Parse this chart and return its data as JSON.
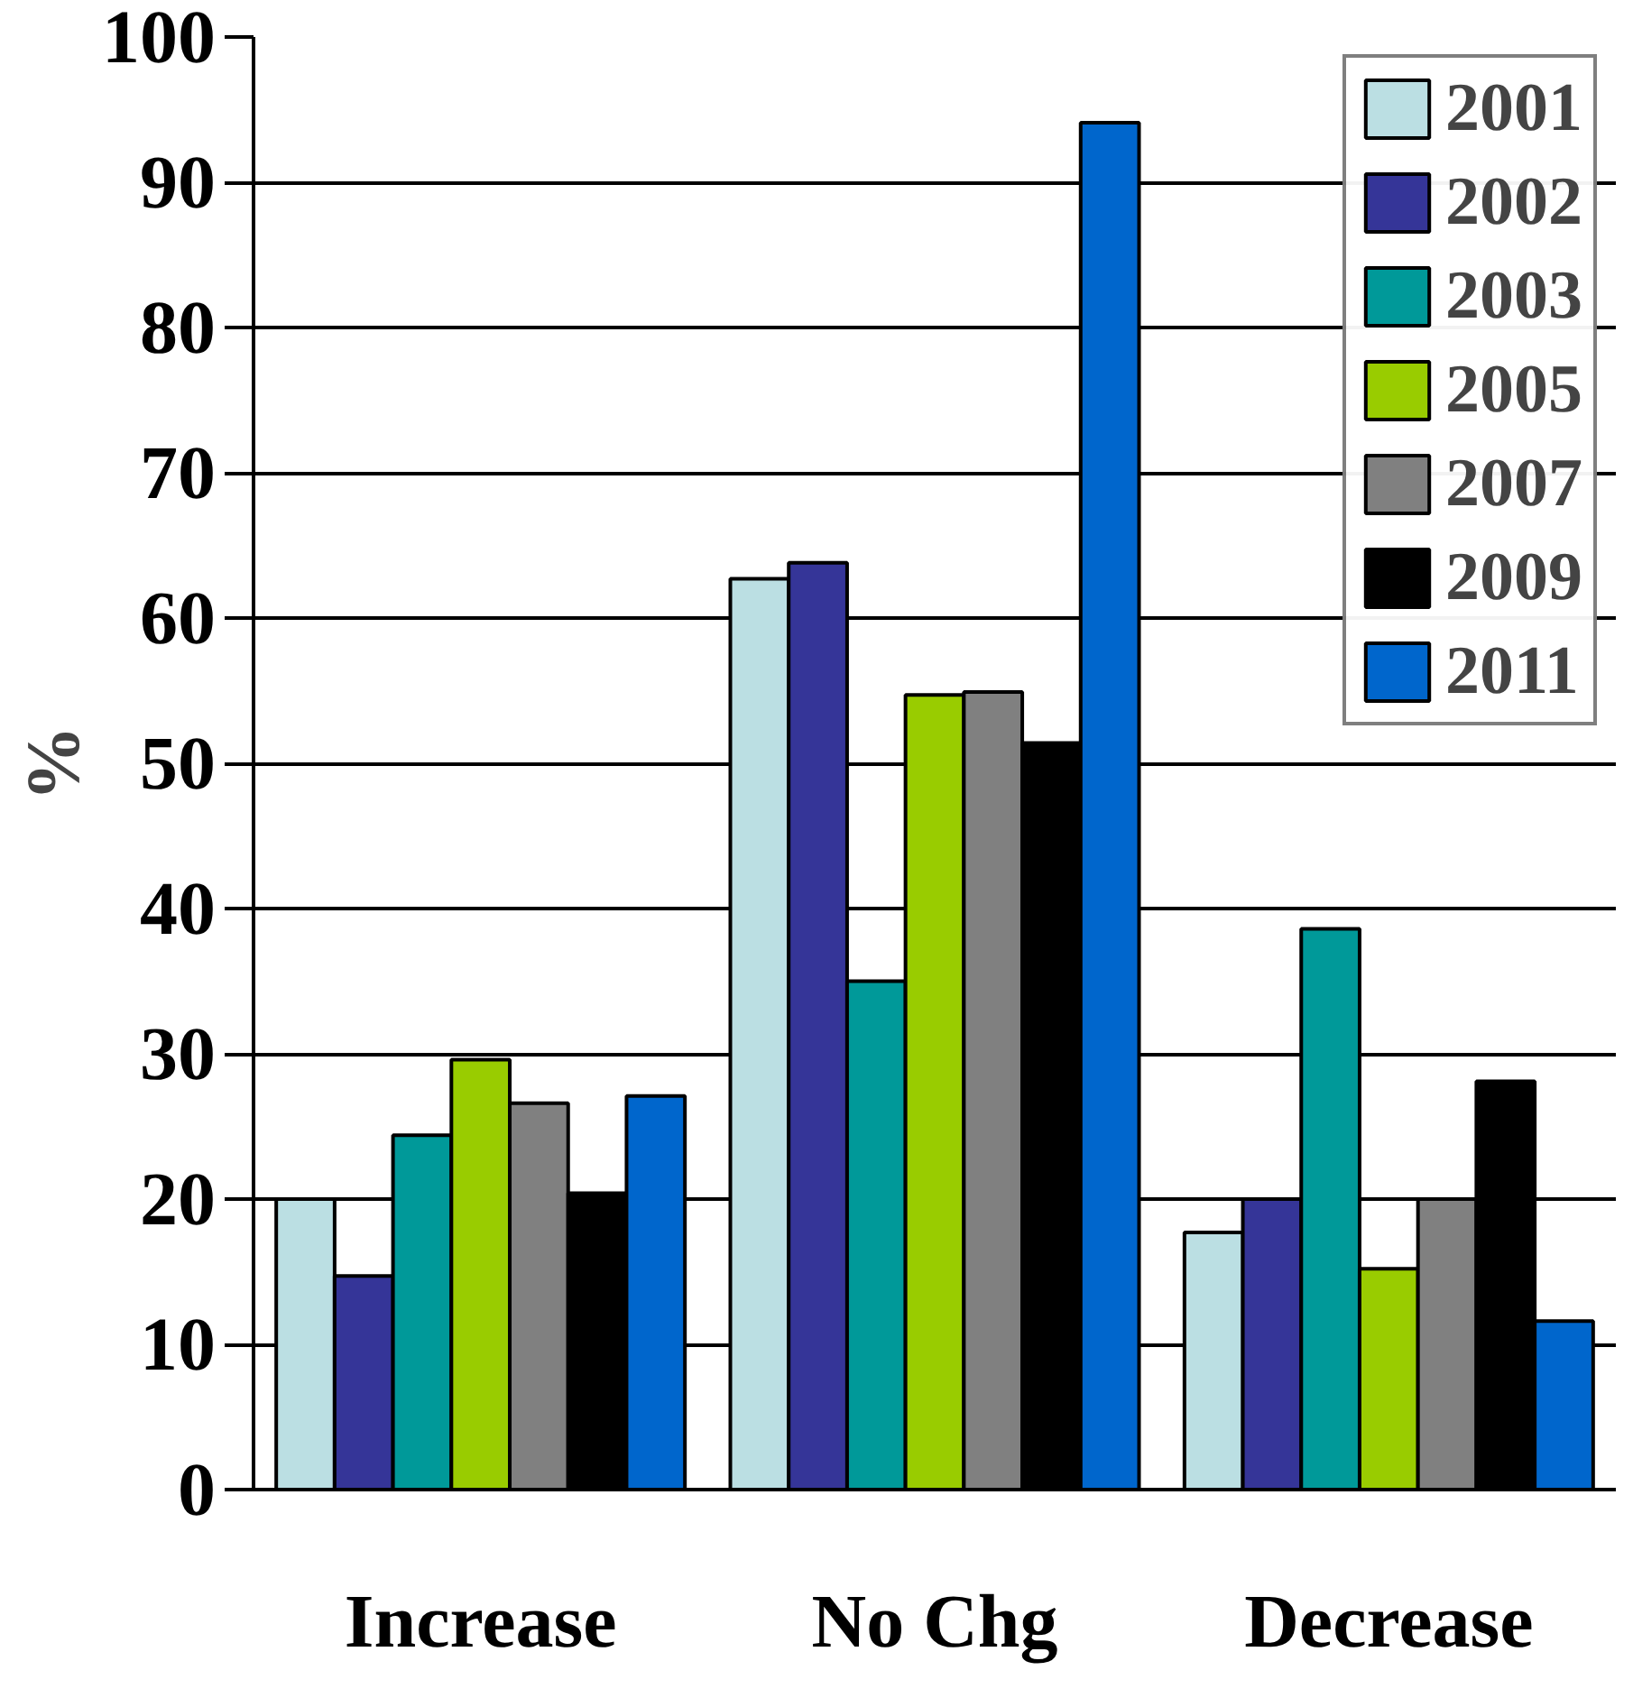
{
  "chart_data": {
    "type": "bar",
    "ylabel": "%",
    "categories": [
      "Increase",
      "No Chg",
      "Decrease"
    ],
    "series": [
      {
        "name": "2001",
        "color": "#bbdfe3",
        "values": [
          20,
          62.7,
          17.7
        ]
      },
      {
        "name": "2002",
        "color": "#353598",
        "values": [
          14.7,
          63.8,
          20
        ]
      },
      {
        "name": "2003",
        "color": "#009999",
        "values": [
          24.4,
          35,
          38.6
        ]
      },
      {
        "name": "2005",
        "color": "#99cc00",
        "values": [
          29.6,
          54.7,
          15.2
        ]
      },
      {
        "name": "2007",
        "color": "#808080",
        "values": [
          26.6,
          54.9,
          20
        ]
      },
      {
        "name": "2009",
        "color": "#000000",
        "values": [
          20.4,
          51.4,
          28.1
        ]
      },
      {
        "name": "2011",
        "color": "#0066cc",
        "values": [
          27.1,
          94.1,
          11.6
        ]
      }
    ],
    "ylim": [
      0,
      100
    ],
    "yticks": [
      0,
      10,
      20,
      30,
      40,
      50,
      60,
      70,
      80,
      90,
      100
    ],
    "grid": "y",
    "legend": "top right"
  }
}
